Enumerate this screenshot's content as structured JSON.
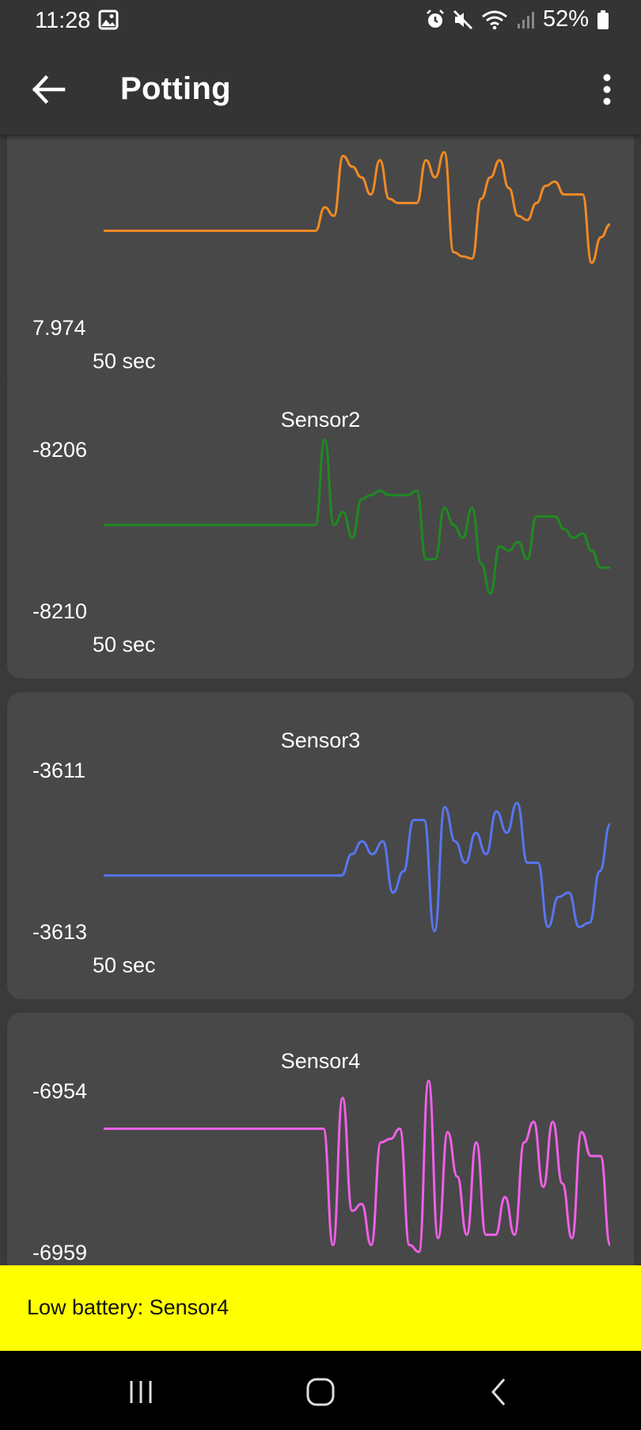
{
  "status": {
    "time": "11:28",
    "battery": "52%"
  },
  "app": {
    "title": "Potting"
  },
  "cards": [
    {
      "name": "",
      "ymax": "",
      "ymin": "7.974",
      "xlabel": "50 sec",
      "color": "#f08a24"
    },
    {
      "name": "Sensor2",
      "ymax": "-8206",
      "ymin": "-8210",
      "xlabel": "50 sec",
      "color": "#1f8a1f"
    },
    {
      "name": "Sensor3",
      "ymax": "-3611",
      "ymin": "-3613",
      "xlabel": "50 sec",
      "color": "#5876f0"
    },
    {
      "name": "Sensor4",
      "ymax": "-6954",
      "ymin": "-6959",
      "xlabel": "",
      "color": "#f060e8"
    }
  ],
  "toast": {
    "text": "Low battery: Sensor4"
  },
  "icons": {
    "back": "arrow-left-icon",
    "more": "more-vert-icon",
    "gallery": "image-icon",
    "alarm": "alarm-icon",
    "mute": "mute-icon",
    "wifi": "wifi-icon",
    "signal": "signal-icon",
    "battery": "battery-icon",
    "recents": "recents-icon",
    "home": "home-icon",
    "nav_back": "nav-back-icon"
  },
  "chart_data": [
    {
      "type": "line",
      "title": "",
      "xlabel": "50 sec",
      "ylabel": "",
      "ylim": [
        7.97,
        7.978
      ],
      "series": [
        {
          "values": [
            7.9745,
            7.9745,
            7.9745,
            7.9745,
            7.9745,
            7.9745,
            7.9745,
            7.9745,
            7.9745,
            7.9745,
            7.9745,
            7.9745,
            7.9745,
            7.9745,
            7.9745,
            7.9745,
            7.9745,
            7.9745,
            7.9745,
            7.9745,
            7.9745,
            7.9745,
            7.9745,
            7.9745,
            7.9756,
            7.9752,
            7.978,
            7.9775,
            7.977,
            7.9762,
            7.9778,
            7.976,
            7.9758,
            7.9758,
            7.9758,
            7.9778,
            7.977,
            7.9789,
            7.9735,
            7.9733,
            7.9732,
            7.976,
            7.977,
            7.9778,
            7.9765,
            7.9752,
            7.975,
            7.9758,
            7.9766,
            7.9768,
            7.9762,
            7.9762,
            7.9762,
            7.973,
            7.9742,
            7.9748
          ]
        }
      ]
    },
    {
      "type": "line",
      "title": "Sensor2",
      "xlabel": "50 sec",
      "ylabel": "",
      "ylim": [
        -8210,
        -8206
      ],
      "series": [
        {
          "name": "Sensor2",
          "values": [
            -8208.0,
            -8208.0,
            -8208.0,
            -8208.0,
            -8208.0,
            -8208.0,
            -8208.0,
            -8208.0,
            -8208.0,
            -8208.0,
            -8208.0,
            -8208.0,
            -8208.0,
            -8208.0,
            -8208.0,
            -8208.0,
            -8208.0,
            -8208.0,
            -8208.0,
            -8208.0,
            -8208.0,
            -8208.0,
            -8208.0,
            -8208.0,
            -8206.0,
            -8208.0,
            -8207.7,
            -8208.3,
            -8207.4,
            -8207.3,
            -8207.2,
            -8207.3,
            -8207.3,
            -8207.3,
            -8207.2,
            -8208.8,
            -8208.8,
            -8207.6,
            -8208.0,
            -8208.3,
            -8207.6,
            -8208.9,
            -8209.6,
            -8208.5,
            -8208.6,
            -8208.4,
            -8208.8,
            -8207.8,
            -8207.8,
            -8207.8,
            -8208.1,
            -8208.3,
            -8208.2,
            -8208.6,
            -8209.0,
            -8209.0
          ]
        }
      ]
    },
    {
      "type": "line",
      "title": "Sensor3",
      "xlabel": "50 sec",
      "ylabel": "",
      "ylim": [
        -3613,
        -3611
      ],
      "series": [
        {
          "name": "Sensor3",
          "values": [
            -3612.35,
            -3612.35,
            -3612.35,
            -3612.35,
            -3612.35,
            -3612.35,
            -3612.35,
            -3612.35,
            -3612.35,
            -3612.35,
            -3612.35,
            -3612.35,
            -3612.35,
            -3612.35,
            -3612.35,
            -3612.35,
            -3612.35,
            -3612.35,
            -3612.35,
            -3612.35,
            -3612.35,
            -3612.35,
            -3612.35,
            -3612.35,
            -3612.1,
            -3611.95,
            -3612.1,
            -3611.95,
            -3612.55,
            -3612.3,
            -3611.7,
            -3611.7,
            -3613.0,
            -3611.55,
            -3611.95,
            -3612.2,
            -3611.85,
            -3612.1,
            -3611.6,
            -3611.85,
            -3611.5,
            -3612.2,
            -3612.2,
            -3612.95,
            -3612.6,
            -3612.55,
            -3612.95,
            -3612.9,
            -3612.3,
            -3611.75
          ]
        }
      ]
    },
    {
      "type": "line",
      "title": "Sensor4",
      "xlabel": "",
      "ylabel": "",
      "ylim": [
        -6959,
        -6954
      ],
      "series": [
        {
          "name": "Sensor4",
          "values": [
            -6955.4,
            -6955.4,
            -6955.4,
            -6955.4,
            -6955.4,
            -6955.4,
            -6955.4,
            -6955.4,
            -6955.4,
            -6955.4,
            -6955.4,
            -6955.4,
            -6955.4,
            -6955.4,
            -6955.4,
            -6955.4,
            -6955.4,
            -6955.4,
            -6955.4,
            -6955.4,
            -6955.4,
            -6955.4,
            -6955.4,
            -6955.4,
            -6958.8,
            -6954.5,
            -6957.8,
            -6957.6,
            -6958.8,
            -6955.8,
            -6955.7,
            -6955.4,
            -6958.8,
            -6959.0,
            -6954.0,
            -6958.6,
            -6955.5,
            -6956.8,
            -6958.5,
            -6955.8,
            -6958.5,
            -6958.5,
            -6957.4,
            -6958.5,
            -6955.8,
            -6955.2,
            -6957.1,
            -6955.2,
            -6957.0,
            -6958.6,
            -6955.5,
            -6956.2,
            -6956.2,
            -6958.8
          ]
        }
      ]
    }
  ]
}
